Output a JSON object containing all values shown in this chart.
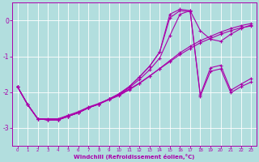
{
  "background_color": "#b2dede",
  "grid_color": "#c8eaea",
  "line_color": "#aa00aa",
  "xlabel": "Windchill (Refroidissement éolien,°C)",
  "xlim": [
    -0.5,
    23.5
  ],
  "ylim": [
    -3.5,
    0.5
  ],
  "yticks": [
    0,
    -1,
    -2,
    -3
  ],
  "xticks": [
    0,
    1,
    2,
    3,
    4,
    5,
    6,
    7,
    8,
    9,
    10,
    11,
    12,
    13,
    14,
    15,
    16,
    17,
    18,
    19,
    20,
    21,
    22,
    23
  ],
  "lines": [
    [
      -1.85,
      -2.35,
      -2.75,
      -2.75,
      -2.75,
      -2.65,
      -2.55,
      -2.42,
      -2.32,
      -2.2,
      -2.08,
      -1.92,
      -1.75,
      -1.55,
      -1.35,
      -1.15,
      -0.95,
      -0.78,
      -0.62,
      -0.5,
      -0.38,
      -0.28,
      -0.2,
      -0.15
    ],
    [
      -1.85,
      -2.35,
      -2.75,
      -2.78,
      -2.78,
      -2.68,
      -2.58,
      -2.44,
      -2.34,
      -2.22,
      -2.1,
      -1.94,
      -1.76,
      -1.56,
      -1.34,
      -1.12,
      -0.9,
      -0.72,
      -0.56,
      -0.44,
      -0.32,
      -0.22,
      -0.14,
      -0.08
    ],
    [
      -1.85,
      -2.35,
      -2.75,
      -2.78,
      -2.78,
      -2.68,
      -2.58,
      -2.44,
      -2.34,
      -2.2,
      -2.08,
      -1.88,
      -1.65,
      -1.38,
      -1.05,
      -0.42,
      0.18,
      0.28,
      -0.28,
      -0.52,
      -0.58,
      -0.38,
      -0.22,
      -0.12
    ],
    [
      -1.85,
      -2.35,
      -2.75,
      -2.78,
      -2.78,
      -2.68,
      -2.58,
      -2.44,
      -2.34,
      -2.2,
      -2.05,
      -1.85,
      -1.58,
      -1.28,
      -0.88,
      0.08,
      0.28,
      0.25,
      -2.08,
      -1.32,
      -1.25,
      -1.95,
      -1.78,
      -1.62
    ],
    [
      -1.85,
      -2.35,
      -2.75,
      -2.78,
      -2.78,
      -2.68,
      -2.58,
      -2.44,
      -2.34,
      -2.2,
      -2.05,
      -1.85,
      -1.58,
      -1.28,
      -0.88,
      0.18,
      0.32,
      0.28,
      -2.12,
      -1.42,
      -1.35,
      -2.02,
      -1.85,
      -1.72
    ]
  ]
}
